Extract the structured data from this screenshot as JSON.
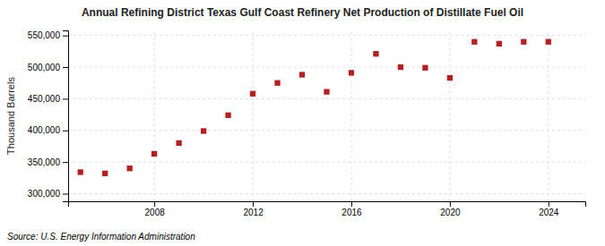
{
  "chart_data": {
    "type": "scatter",
    "title": "Annual Refining District Texas Gulf Coast Refinery Net Production of Distillate Fuel Oil",
    "ylabel": "Thousand Barrels",
    "annotation": "Source: U.S. Energy Information Administration",
    "x": [
      2005,
      2006,
      2007,
      2008,
      2009,
      2010,
      2011,
      2012,
      2013,
      2014,
      2015,
      2016,
      2017,
      2018,
      2019,
      2020,
      2021,
      2022,
      2023,
      2024
    ],
    "values": [
      334000,
      332000,
      340000,
      363000,
      380000,
      399000,
      424000,
      458000,
      475000,
      488000,
      461000,
      491000,
      521000,
      500000,
      499000,
      483000,
      540000,
      537000,
      540000,
      540000
    ],
    "color": "#b22222",
    "marker": "square",
    "xlim": [
      2004.5,
      2025.5
    ],
    "xticks": [
      2008,
      2012,
      2016,
      2020,
      2024
    ],
    "ylim": [
      288000,
      558000
    ],
    "yticks": [
      {
        "value": 300000,
        "label": "300,000"
      },
      {
        "value": 350000,
        "label": "350,000"
      },
      {
        "value": 400000,
        "label": "400,000"
      },
      {
        "value": 450000,
        "label": "450,000"
      },
      {
        "value": 500000,
        "label": "500,000"
      },
      {
        "value": 550000,
        "label": "550,000"
      }
    ],
    "grid": true
  }
}
